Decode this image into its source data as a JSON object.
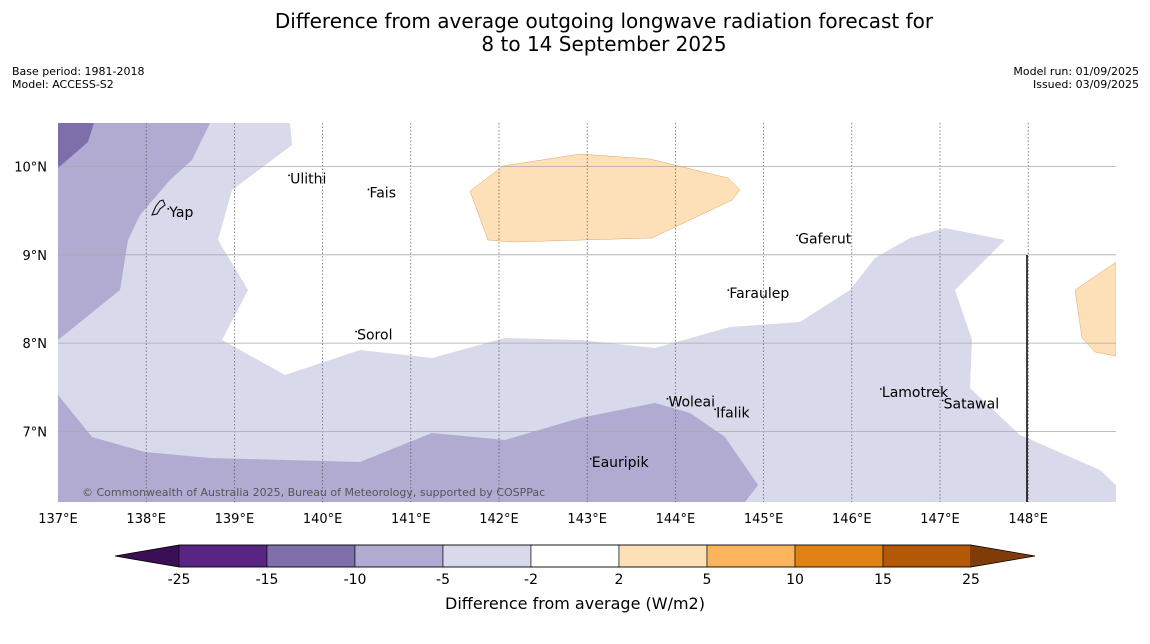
{
  "title": {
    "line1": "Difference from average outgoing longwave radiation forecast for",
    "line2": "8 to 14 September 2025"
  },
  "meta_left": {
    "base_period": "Base period: 1981-2018",
    "model": "Model: ACCESS-S2"
  },
  "meta_right": {
    "model_run": "Model run: 01/09/2025",
    "issued": "Issued: 03/09/2025"
  },
  "map": {
    "longitude_labels": [
      "137°E",
      "138°E",
      "139°E",
      "140°E",
      "141°E",
      "142°E",
      "143°E",
      "144°E",
      "145°E",
      "146°E",
      "147°E",
      "148°E"
    ],
    "latitude_labels": [
      "10°N",
      "9°N",
      "8°N",
      "7°N"
    ],
    "places": [
      {
        "name": "Yap",
        "lon": 138.25,
        "lat": 9.52
      },
      {
        "name": "Ulithi",
        "lon": 139.62,
        "lat": 9.9
      },
      {
        "name": "Fais",
        "lon": 140.52,
        "lat": 9.74
      },
      {
        "name": "Gaferut",
        "lon": 145.38,
        "lat": 9.22
      },
      {
        "name": "Faraulep",
        "lon": 144.6,
        "lat": 8.6
      },
      {
        "name": "Sorol",
        "lon": 140.38,
        "lat": 8.13
      },
      {
        "name": "Lamotrek",
        "lon": 146.33,
        "lat": 7.48
      },
      {
        "name": "Satawal",
        "lon": 147.03,
        "lat": 7.35
      },
      {
        "name": "Woleai",
        "lon": 143.91,
        "lat": 7.37
      },
      {
        "name": "Ifalik",
        "lon": 144.45,
        "lat": 7.25
      },
      {
        "name": "Eauripik",
        "lon": 143.04,
        "lat": 6.69
      }
    ],
    "copyright": "© Commonwealth of Australia 2025, Bureau of Meteorology, supported by COSPPac"
  },
  "colorbar": {
    "label": "Difference from average (W/m2)",
    "ticks": [
      "-25",
      "-15",
      "-10",
      "-5",
      "-2",
      "2",
      "5",
      "10",
      "15",
      "25"
    ],
    "colors": {
      "under": "#3b0f55",
      "b1": "#5a2485",
      "b2": "#7e6fab",
      "b3": "#b1abd2",
      "b4": "#d8d9ea",
      "b5": "#ffffff",
      "b6": "#fde0b7",
      "b7": "#fcb55c",
      "b8": "#e08214",
      "b9": "#b35806",
      "over": "#7f3b08"
    }
  }
}
